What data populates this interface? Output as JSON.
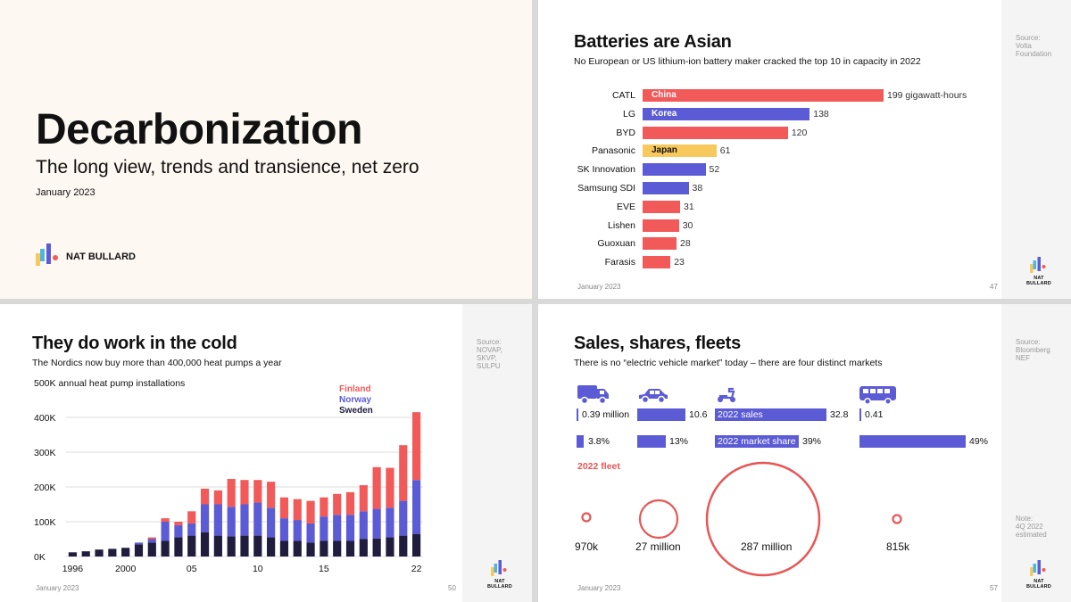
{
  "panel1": {
    "title": "Decarbonization",
    "subtitle": "The long view, trends and transience, net zero",
    "date": "January 2023",
    "brand": "NAT BULLARD"
  },
  "panel2": {
    "title": "Batteries are Asian",
    "subtitle": "No European or US lithium-ion battery maker cracked the top 10 in capacity in 2022",
    "source": "Source:\nVolta\nFoundation",
    "footer_date": "January 2023",
    "page_number": "47",
    "brand": "NAT BULLARD",
    "colors": {
      "China": "#f25a5a",
      "Korea": "#5b5bd6",
      "Japan": "#f7c95c"
    }
  },
  "panel3": {
    "title": "They do work in the cold",
    "subtitle": "The Nordics now buy more than 400,000 heat pumps a year",
    "source": "Source:\nNOVAP,\nSKVP,\nSULPU",
    "footer_date": "January 2023",
    "page_number": "50",
    "brand": "NAT BULLARD"
  },
  "panel4": {
    "title": "Sales, shares, fleets",
    "subtitle": "There is no “electric vehicle market” today – there are four distinct markets",
    "source": "Source:\nBloomberg\nNEF",
    "note": "Note:\n4Q 2022\nestimated",
    "footer_date": "January 2023",
    "page_number": "57",
    "brand": "NAT BULLARD",
    "segments": [
      {
        "icon": "truck-icon",
        "sales_label": "0.39 million",
        "sales": 0.39,
        "share_label": "3.8%",
        "share": 3.8,
        "fleet_label": "970k"
      },
      {
        "icon": "car-icon",
        "sales_label": "10.6",
        "sales": 10.6,
        "share_label": "13%",
        "share": 13,
        "fleet_label": "27 million"
      },
      {
        "icon": "scooter-icon",
        "sales_label": "32.8",
        "sales": 32.8,
        "share_label": "39%",
        "share": 39,
        "fleet_label": "287 million",
        "sales_inner": "2022 sales",
        "share_inner": "2022 market share"
      },
      {
        "icon": "bus-icon",
        "sales_label": "0.41",
        "sales": 0.41,
        "share_label": "49%",
        "share": 49,
        "fleet_label": "815k"
      }
    ],
    "fleet_heading": "2022 fleet",
    "colors": {
      "bar": "#5b5bd6",
      "fleet": "#e85555"
    }
  },
  "chart_data": [
    {
      "type": "bar",
      "title": "Batteries are Asian",
      "categories": [
        "CATL",
        "LG",
        "BYD",
        "Panasonic",
        "SK Innovation",
        "Samsung SDI",
        "EVE",
        "Lishen",
        "Guoxuan",
        "Farasis"
      ],
      "values": [
        199,
        138,
        120,
        61,
        52,
        38,
        31,
        30,
        28,
        23
      ],
      "value_labels": [
        "199 gigawatt-hours",
        "138",
        "120",
        "61",
        "52",
        "38",
        "31",
        "30",
        "28",
        "23"
      ],
      "country": [
        "China",
        "Korea",
        "China",
        "Japan",
        "Korea",
        "Korea",
        "China",
        "China",
        "China",
        "China"
      ],
      "country_labels": [
        "China",
        "Korea",
        "",
        "Japan",
        "",
        "",
        "",
        "",
        "",
        ""
      ],
      "orientation": "horizontal"
    },
    {
      "type": "bar",
      "stacked": true,
      "title": "They do work in the cold",
      "ylabel": "500K annual heat pump installations",
      "ylim": [
        0,
        500000
      ],
      "yticks": [
        "0K",
        "100K",
        "200K",
        "300K",
        "400K"
      ],
      "x": [
        1996,
        1997,
        1998,
        1999,
        2000,
        2001,
        2002,
        2003,
        2004,
        2005,
        2006,
        2007,
        2008,
        2009,
        2010,
        2011,
        2012,
        2013,
        2014,
        2015,
        2016,
        2017,
        2018,
        2019,
        2020,
        2021,
        2022
      ],
      "xtick_labels": [
        "1996",
        "2000",
        "05",
        "10",
        "15",
        "22"
      ],
      "series": [
        {
          "name": "Sweden",
          "color": "#1f1c3d",
          "values": [
            12000,
            15000,
            20000,
            22000,
            25000,
            35000,
            40000,
            45000,
            55000,
            60000,
            70000,
            60000,
            58000,
            60000,
            60000,
            55000,
            45000,
            45000,
            40000,
            45000,
            45000,
            45000,
            50000,
            52000,
            55000,
            60000,
            65000
          ]
        },
        {
          "name": "Norway",
          "color": "#5b5bd6",
          "values": [
            0,
            0,
            0,
            0,
            0,
            5000,
            10000,
            55000,
            35000,
            35000,
            80000,
            90000,
            85000,
            90000,
            95000,
            85000,
            65000,
            60000,
            55000,
            70000,
            75000,
            75000,
            80000,
            85000,
            85000,
            100000,
            155000
          ]
        },
        {
          "name": "Finland",
          "color": "#f25a5a",
          "values": [
            0,
            0,
            0,
            0,
            0,
            0,
            5000,
            10000,
            10000,
            35000,
            45000,
            40000,
            80000,
            70000,
            65000,
            75000,
            60000,
            60000,
            65000,
            55000,
            60000,
            65000,
            75000,
            120000,
            115000,
            160000,
            195000
          ]
        }
      ],
      "legend_position": "top-right"
    }
  ]
}
